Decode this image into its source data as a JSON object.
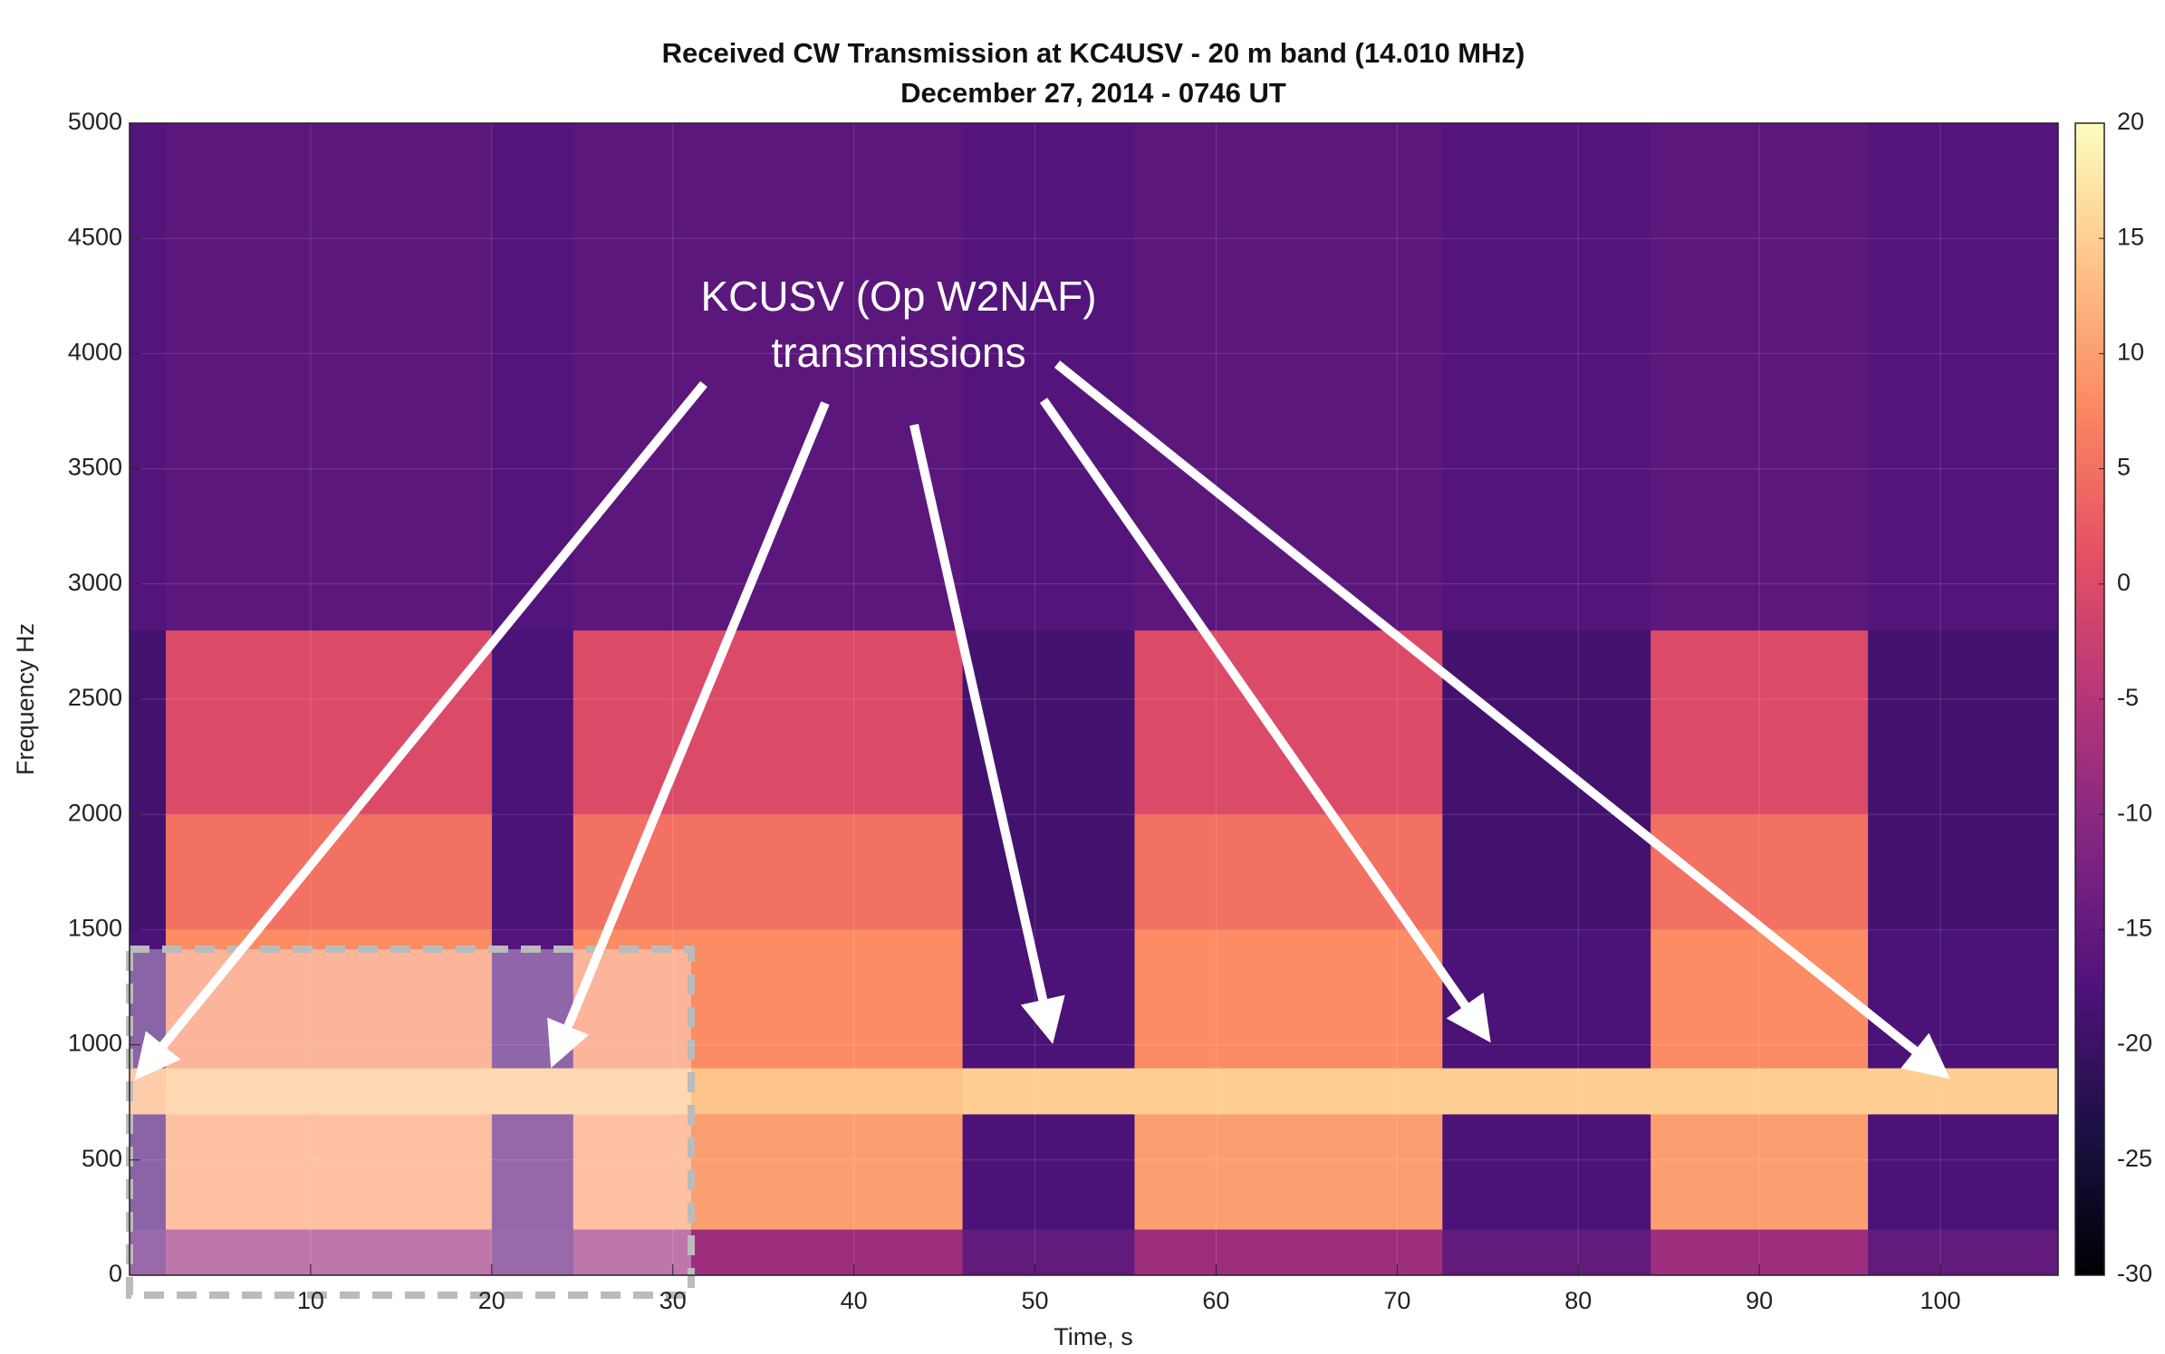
{
  "chart_data": {
    "type": "heatmap",
    "title": "Received CW Transmission at KC4USV - 20 m band (14.010 MHz)",
    "subtitle": "December 27, 2014 - 0746 UT",
    "x_label": "Time, s",
    "y_label": "Frequency Hz",
    "x_edges": [
      0,
      2,
      20,
      24.5,
      46,
      55.5,
      72.5,
      84,
      96,
      106.5
    ],
    "y_edges": [
      0,
      200,
      700,
      900,
      1500,
      2000,
      2800,
      5000
    ],
    "z": [
      [
        -15,
        -8,
        -15,
        -8,
        -15,
        -8,
        -15,
        -8,
        -15
      ],
      [
        -18,
        10,
        -16,
        10,
        -18,
        10,
        -18,
        10,
        -18
      ],
      [
        12,
        14,
        14,
        14,
        15,
        15,
        15,
        15,
        15
      ],
      [
        -18,
        8,
        -17,
        8,
        -18,
        8,
        -18,
        8,
        -18
      ],
      [
        -19,
        5,
        -18,
        5,
        -19,
        5,
        -19,
        5,
        -19
      ],
      [
        -19,
        0,
        -18,
        0,
        -19,
        0,
        -19,
        0,
        -19
      ],
      [
        -17,
        -16,
        -17,
        -16,
        -17,
        -16,
        -17,
        -16,
        -17
      ]
    ],
    "xlim": [
      0,
      106.5
    ],
    "ylim": [
      0,
      5000
    ],
    "xticks": [
      10,
      20,
      30,
      40,
      50,
      60,
      70,
      80,
      90,
      100
    ],
    "yticks": [
      0,
      500,
      1000,
      1500,
      2000,
      2500,
      3000,
      3500,
      4000,
      4500,
      5000
    ],
    "clim": [
      -30,
      20
    ],
    "cticks": [
      -30,
      -25,
      -20,
      -15,
      -10,
      -5,
      0,
      5,
      10,
      15,
      20
    ],
    "colormap": [
      "#000004",
      "#1c1044",
      "#4f127b",
      "#812581",
      "#b5367a",
      "#e55064",
      "#fb8761",
      "#fec287",
      "#fcfdbf"
    ],
    "grid": true,
    "annotations": [
      "KCUSV (Op W2NAF)",
      "transmissions"
    ]
  }
}
